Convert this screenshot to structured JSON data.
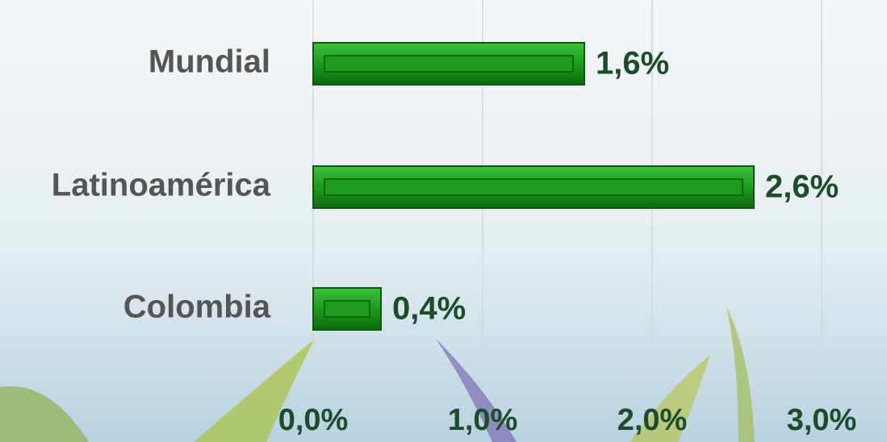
{
  "chart_data": {
    "type": "hbar",
    "categories": [
      "Mundial",
      "Latinoamérica",
      "Colombia"
    ],
    "values": [
      1.6,
      2.6,
      0.4
    ],
    "value_labels": [
      "1,6%",
      "2,6%",
      "0,4%"
    ],
    "color": "#1e9b1e",
    "xlim": [
      0,
      3
    ],
    "xticks": [
      {
        "value": 0,
        "label": "0,0%"
      },
      {
        "value": 1,
        "label": "1,0%"
      },
      {
        "value": 2,
        "label": "2,0%"
      },
      {
        "value": 3,
        "label": "3,0%"
      }
    ],
    "grid": true
  }
}
